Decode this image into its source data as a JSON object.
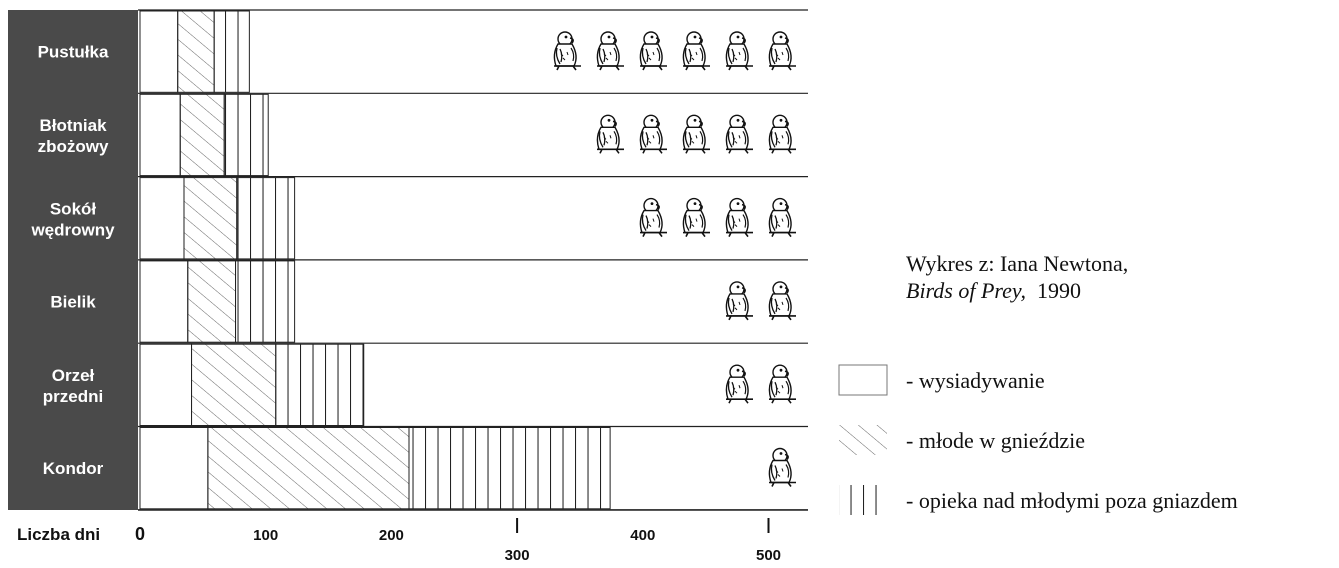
{
  "chart_data": {
    "type": "bar",
    "orientation": "horizontal",
    "stacked": true,
    "categories": [
      {
        "line1": "Pustułka",
        "line2": ""
      },
      {
        "line1": "Błotniak",
        "line2": "zbożowy"
      },
      {
        "line1": "Sokół",
        "line2": "wędrowny"
      },
      {
        "line1": "Bielik",
        "line2": ""
      },
      {
        "line1": "Orzeł",
        "line2": "przedni"
      },
      {
        "line1": "Kondor",
        "line2": ""
      }
    ],
    "series": [
      {
        "name": "- wysiadywanie",
        "pattern": "blank",
        "values": [
          30,
          32,
          35,
          38,
          41,
          54
        ]
      },
      {
        "name": "- młode w gnieździe",
        "pattern": "diagonal",
        "values": [
          29,
          35,
          42,
          38,
          67,
          160
        ]
      },
      {
        "name": "- opieka nad młodymi poza gniazdem",
        "pattern": "vertical",
        "values": [
          28,
          35,
          46,
          47,
          70,
          160
        ]
      }
    ],
    "bird_icon_counts": [
      6,
      5,
      4,
      2,
      2,
      1
    ],
    "xlim": [
      0,
      530
    ],
    "xticks": [
      {
        "value": 0,
        "label": "0"
      },
      {
        "value": 100,
        "label": "100"
      },
      {
        "value": 200,
        "label": "200"
      },
      {
        "value": 300,
        "label": "300"
      },
      {
        "value": 400,
        "label": "400"
      },
      {
        "value": 500,
        "label": "500"
      }
    ],
    "xlabel": "Liczba dni",
    "grid": false,
    "legend_position": "right",
    "colors": {
      "label_panel": "#4a4a4a",
      "line": "#222222",
      "background": "#ffffff"
    }
  },
  "source": {
    "line1": "Wykres z: Iana Newtona,",
    "book": "Birds of Prey,",
    "year": "1990"
  }
}
